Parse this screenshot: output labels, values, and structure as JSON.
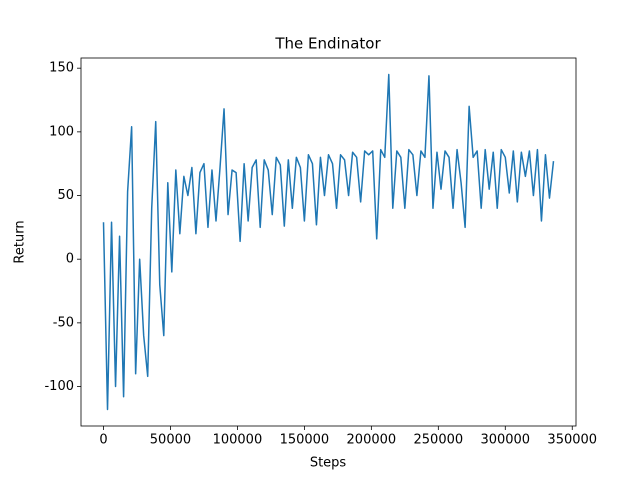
{
  "chart_data": {
    "type": "line",
    "title": "The Endinator",
    "x_label": "Steps",
    "y_label": "Return",
    "color": "#1f77b4",
    "x": [
      0,
      3000,
      6000,
      9000,
      12000,
      15000,
      18000,
      21000,
      24000,
      27000,
      30000,
      33000,
      36000,
      39000,
      42000,
      45000,
      48000,
      51000,
      54000,
      57000,
      60000,
      63000,
      66000,
      69000,
      72000,
      75000,
      78000,
      81000,
      84000,
      87000,
      90000,
      93000,
      96000,
      99000,
      102000,
      105000,
      108000,
      111000,
      114000,
      117000,
      120000,
      123000,
      126000,
      129000,
      132000,
      135000,
      138000,
      141000,
      144000,
      147000,
      150000,
      153000,
      156000,
      159000,
      162000,
      165000,
      168000,
      171000,
      174000,
      177000,
      180000,
      183000,
      186000,
      189000,
      192000,
      195000,
      198000,
      201000,
      204000,
      207000,
      210000,
      213000,
      216000,
      219000,
      222000,
      225000,
      228000,
      231000,
      234000,
      237000,
      240000,
      243000,
      246000,
      249000,
      252000,
      255000,
      258000,
      261000,
      264000,
      267000,
      270000,
      273000,
      276000,
      279000,
      282000,
      285000,
      288000,
      291000,
      294000,
      297000,
      300000,
      303000,
      306000,
      309000,
      312000,
      315000,
      318000,
      321000,
      324000,
      327000,
      330000,
      333000,
      336000
    ],
    "values": [
      29,
      -118,
      29,
      -100,
      18,
      -108,
      53,
      104,
      -90,
      0,
      -60,
      -92,
      40,
      108,
      -20,
      -60,
      60,
      -10,
      70,
      20,
      65,
      50,
      72,
      20,
      68,
      75,
      25,
      70,
      30,
      72,
      118,
      35,
      70,
      68,
      14,
      75,
      30,
      72,
      78,
      25,
      78,
      70,
      35,
      80,
      74,
      26,
      78,
      40,
      80,
      72,
      30,
      82,
      75,
      27,
      80,
      50,
      82,
      75,
      40,
      82,
      78,
      50,
      84,
      80,
      45,
      85,
      82,
      85,
      16,
      86,
      80,
      145,
      40,
      85,
      80,
      40,
      86,
      82,
      50,
      85,
      80,
      144,
      40,
      84,
      55,
      85,
      80,
      40,
      86,
      60,
      25,
      120,
      80,
      85,
      40,
      86,
      55,
      84,
      40,
      86,
      80,
      52,
      85,
      45,
      84,
      65,
      85,
      50,
      86,
      30,
      82,
      48,
      77
    ],
    "xlim": [
      -16800,
      352800
    ],
    "ylim": [
      -131,
      158
    ],
    "xticks": [
      0,
      50000,
      100000,
      150000,
      200000,
      250000,
      300000,
      350000
    ],
    "yticks": [
      -100,
      -50,
      0,
      50,
      100,
      150
    ]
  }
}
